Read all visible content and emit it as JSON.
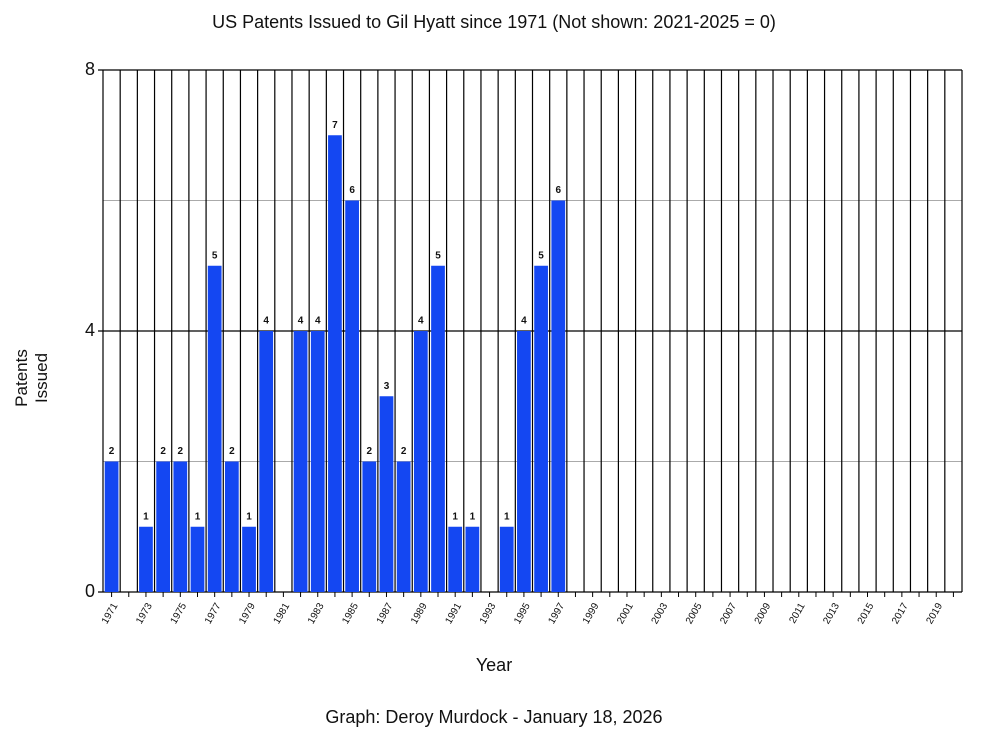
{
  "chart_data": {
    "type": "bar",
    "title": "US Patents Issued to Gil Hyatt since 1971 (Not shown: 2021-2025 = 0)",
    "x_label": "Year",
    "y_label": "Patents Issued",
    "footer": "Graph: Deroy Murdock - January 18, 2026",
    "categories": [
      "1971",
      null,
      "1973",
      null,
      "1975",
      null,
      "1977",
      null,
      "1979",
      null,
      "1981",
      null,
      "1983",
      null,
      "1985",
      null,
      "1987",
      null,
      "1989",
      null,
      "1991",
      null,
      "1993",
      null,
      "1995",
      null,
      "1997",
      null,
      "1999",
      null,
      "2001",
      null,
      "2003",
      null,
      "2005",
      null,
      "2007",
      null,
      "2009",
      null,
      "2011",
      null,
      "2013",
      null,
      "2015",
      null,
      "2017",
      null,
      "2019",
      null
    ],
    "values": [
      2,
      0,
      1,
      2,
      2,
      1,
      5,
      2,
      1,
      4,
      0,
      4,
      4,
      7,
      6,
      2,
      3,
      2,
      4,
      5,
      1,
      1,
      0,
      1,
      4,
      5,
      6,
      0,
      0,
      0,
      0,
      0,
      0,
      0,
      0,
      0,
      0,
      0,
      0,
      0,
      0,
      0,
      0,
      0,
      0,
      0,
      0,
      0,
      0,
      0
    ],
    "color": "#1447f2",
    "ylim": [
      0,
      8
    ],
    "yticks": [
      0,
      4,
      8
    ],
    "minor_yticks": [
      2,
      6
    ],
    "grid": true
  }
}
